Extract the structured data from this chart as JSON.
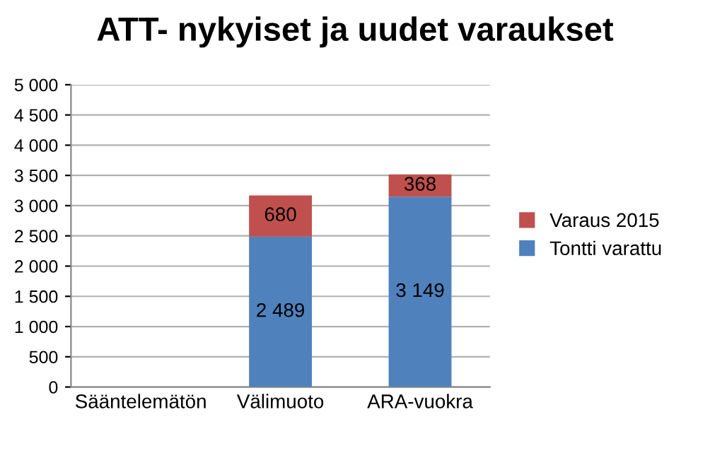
{
  "chart_data": {
    "type": "bar",
    "stacked": true,
    "title": "ATT- nykyiset ja uudet varaukset",
    "categories": [
      "Sääntelemätön",
      "Välimuoto",
      "ARA-vuokra"
    ],
    "series": [
      {
        "name": "Tontti varattu",
        "color": "#4f81bd",
        "values": [
          null,
          2489,
          3149
        ],
        "value_labels": [
          null,
          "2 489",
          "3 149"
        ]
      },
      {
        "name": "Varaus 2015",
        "color": "#c0504d",
        "values": [
          null,
          680,
          368
        ],
        "value_labels": [
          null,
          "680",
          "368"
        ]
      }
    ],
    "ylim": [
      0,
      5000
    ],
    "yticks": [
      0,
      {
        "value": 500,
        "label": "500"
      },
      {
        "value": 1000,
        "label": "1 000"
      },
      {
        "value": 1500,
        "label": "1 500"
      },
      {
        "value": 2000,
        "label": "2 000"
      },
      {
        "value": 2500,
        "label": "2 500"
      },
      {
        "value": 3000,
        "label": "3 000"
      },
      {
        "value": 3500,
        "label": "3 500"
      },
      {
        "value": 4000,
        "label": "4 000"
      },
      {
        "value": 4500,
        "label": "4 500"
      },
      {
        "value": 5000,
        "label": "5 000"
      }
    ],
    "grid": "y",
    "legend": "right"
  }
}
